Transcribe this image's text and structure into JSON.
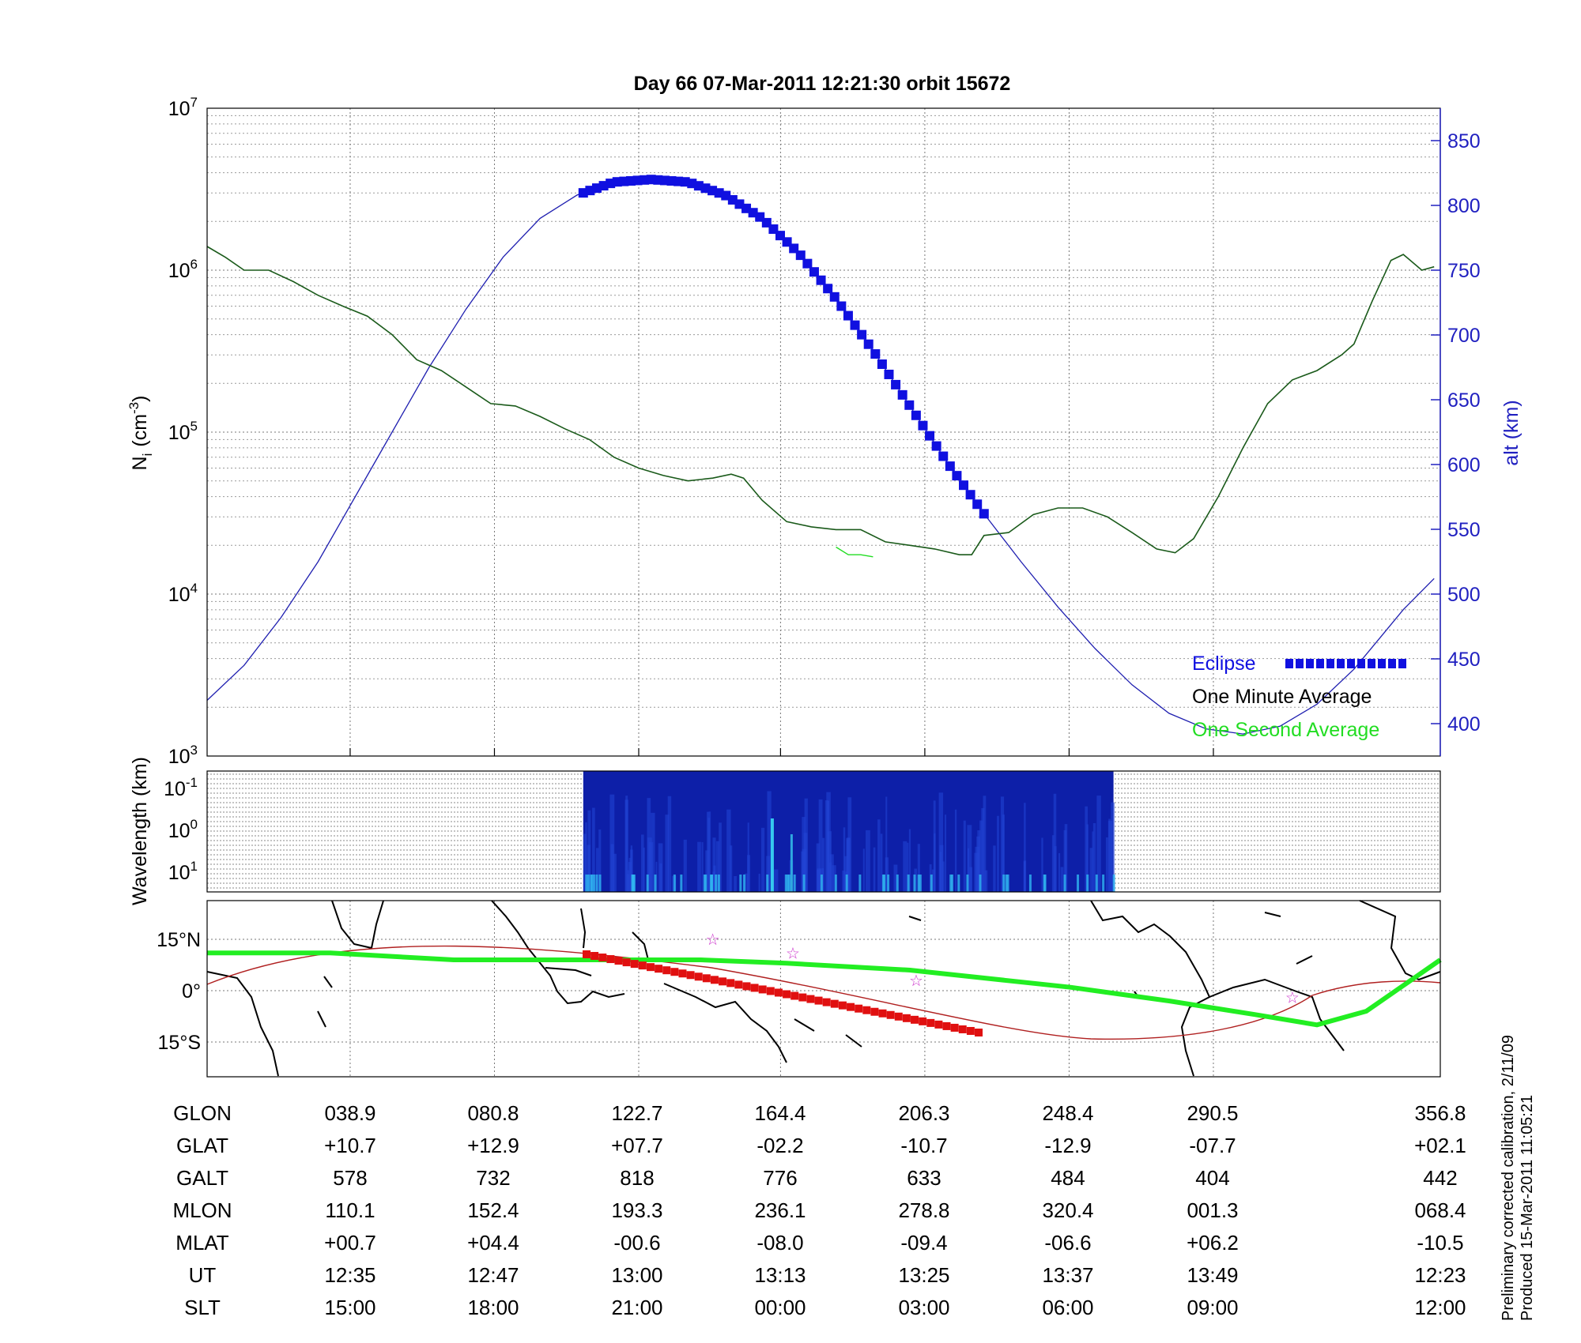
{
  "title": "Day 66  07-Mar-2011 12:21:30   orbit 15672",
  "side_note": {
    "line1": "Preliminary corrected calibration, 2/11/09",
    "line2": "Produced 15-Mar-2011 11:05:21"
  },
  "colors": {
    "altitude": "#1f1fb0",
    "eclipse": "#1010e0",
    "one_minute": "#1a5a1a",
    "one_second": "#22dd22",
    "track": "#22ee22",
    "track_thin": "#b02020",
    "eclipse_track": "#e01010",
    "stars": "#cc33cc",
    "right_axis": "#2020c0"
  },
  "chart_data": [
    {
      "type": "line",
      "panel": "density",
      "ylabel_main": "N",
      "ylabel_sub": "i",
      "ylabel_unit": "(cm",
      "ylabel_exp": "-3",
      "ylabel_close": ")",
      "y_scale": "log",
      "ylim": [
        1000,
        10000000
      ],
      "y_ticks": [
        {
          "value": 1000,
          "base": "10",
          "exp": "3"
        },
        {
          "value": 10000,
          "base": "10",
          "exp": "4"
        },
        {
          "value": 100000,
          "base": "10",
          "exp": "5"
        },
        {
          "value": 1000000,
          "base": "10",
          "exp": "6"
        },
        {
          "value": 10000000,
          "base": "10",
          "exp": "7"
        }
      ],
      "right_axis": {
        "label": "alt (km)",
        "ylim": [
          375,
          875
        ],
        "ticks": [
          "400",
          "450",
          "500",
          "550",
          "600",
          "650",
          "700",
          "750",
          "800",
          "850"
        ]
      },
      "grid": true,
      "x_range": [
        0,
        100
      ],
      "x_gridlines": [
        11.6,
        23.3,
        35,
        46.5,
        58.2,
        69.9,
        81.6
      ],
      "series": [
        {
          "name": "One Minute Average",
          "role": "density",
          "points": [
            [
              0,
              1400000
            ],
            [
              1.5,
              1200000
            ],
            [
              3,
              1000000
            ],
            [
              5,
              1000000
            ],
            [
              7,
              850000
            ],
            [
              9,
              700000
            ],
            [
              11,
              600000
            ],
            [
              13,
              520000
            ],
            [
              15,
              400000
            ],
            [
              17,
              280000
            ],
            [
              19,
              240000
            ],
            [
              21,
              190000
            ],
            [
              23,
              150000
            ],
            [
              25,
              145000
            ],
            [
              27,
              125000
            ],
            [
              29,
              105000
            ],
            [
              31,
              90000
            ],
            [
              33,
              70000
            ],
            [
              35,
              60000
            ],
            [
              37,
              54000
            ],
            [
              39,
              50000
            ],
            [
              41,
              52000
            ],
            [
              42.5,
              55000
            ],
            [
              43.5,
              52000
            ],
            [
              45,
              38000
            ],
            [
              47,
              28000
            ],
            [
              49,
              26000
            ],
            [
              51,
              25000
            ],
            [
              53,
              25000
            ],
            [
              55,
              21000
            ],
            [
              57,
              20000
            ],
            [
              59,
              19000
            ],
            [
              61,
              17500
            ],
            [
              62,
              17500
            ],
            [
              63,
              23000
            ],
            [
              65,
              24000
            ],
            [
              67,
              31000
            ],
            [
              69,
              34000
            ],
            [
              71,
              34000
            ],
            [
              73,
              30000
            ],
            [
              75,
              24000
            ],
            [
              77,
              19000
            ],
            [
              78.5,
              18000
            ],
            [
              80,
              22000
            ],
            [
              82,
              40000
            ],
            [
              84,
              80000
            ],
            [
              86,
              150000
            ],
            [
              88,
              210000
            ],
            [
              90,
              240000
            ],
            [
              92,
              300000
            ],
            [
              93,
              350000
            ],
            [
              94.5,
              650000
            ],
            [
              96,
              1150000
            ],
            [
              97,
              1250000
            ],
            [
              98.5,
              1000000
            ],
            [
              99.5,
              1050000
            ]
          ]
        },
        {
          "name": "One Second Average",
          "role": "density_fine",
          "points": [
            [
              51,
              19500
            ],
            [
              52,
              17500
            ],
            [
              53,
              17500
            ],
            [
              54,
              17000
            ]
          ]
        },
        {
          "name": "altitude",
          "role": "altitude_km",
          "points": [
            [
              0,
              418
            ],
            [
              3,
              445
            ],
            [
              6,
              482
            ],
            [
              9,
              525
            ],
            [
              12,
              575
            ],
            [
              15,
              625
            ],
            [
              18,
              675
            ],
            [
              21,
              720
            ],
            [
              24,
              760
            ],
            [
              27,
              790
            ],
            [
              30,
              808
            ],
            [
              33,
              818
            ],
            [
              36,
              820
            ],
            [
              39,
              818
            ],
            [
              42,
              808
            ],
            [
              45,
              790
            ],
            [
              48,
              763
            ],
            [
              51,
              728
            ],
            [
              54,
              688
            ],
            [
              57,
              645
            ],
            [
              60,
              602
            ],
            [
              63,
              562
            ],
            [
              66,
              525
            ],
            [
              69,
              490
            ],
            [
              72,
              458
            ],
            [
              75,
              430
            ],
            [
              78,
              408
            ],
            [
              81,
              396
            ],
            [
              84,
              392
            ],
            [
              87,
              398
            ],
            [
              90,
              415
            ],
            [
              93,
              442
            ],
            [
              95,
              465
            ],
            [
              97,
              488
            ],
            [
              99.5,
              512
            ]
          ]
        },
        {
          "name": "Eclipse",
          "role": "eclipse",
          "x_start": 30.5,
          "x_end": 63,
          "count": 60
        }
      ],
      "legend": [
        {
          "label": "Eclipse",
          "role": "eclipse"
        },
        {
          "label": "One Minute Average",
          "role": "one_minute"
        },
        {
          "label": "One Second Average",
          "role": "one_second"
        }
      ],
      "legend_position": "bottom-right"
    },
    {
      "type": "heatmap",
      "panel": "spectrogram",
      "ylabel": "Wavelength (km)",
      "y_ticks": [
        {
          "base": "10",
          "exp": "-1"
        },
        {
          "base": "10",
          "exp": "0"
        },
        {
          "base": "10",
          "exp": "1"
        }
      ],
      "data_extent_x": [
        30.5,
        73.5
      ]
    },
    {
      "type": "map",
      "panel": "ground_track",
      "y_ticks": [
        {
          "value": 15,
          "label": "15°N"
        },
        {
          "value": 0,
          "label": "0°"
        },
        {
          "value": -15,
          "label": "15°S"
        }
      ],
      "track_points": [
        [
          0,
          11
        ],
        [
          10,
          11
        ],
        [
          20,
          9
        ],
        [
          30,
          9
        ],
        [
          40,
          9
        ],
        [
          47,
          8
        ],
        [
          57,
          6
        ],
        [
          70,
          1
        ],
        [
          78,
          -3
        ],
        [
          85,
          -7
        ],
        [
          90,
          -10
        ],
        [
          94,
          -6
        ],
        [
          98,
          4
        ],
        [
          100,
          9
        ]
      ],
      "stars": [
        [
          41,
          15
        ],
        [
          47.5,
          11
        ],
        [
          57.5,
          3
        ],
        [
          88,
          -2
        ]
      ]
    }
  ],
  "table": {
    "rows": [
      {
        "label": "GLON",
        "values": [
          "038.9",
          "080.8",
          "122.7",
          "164.4",
          "206.3",
          "248.4",
          "290.5",
          "356.8"
        ]
      },
      {
        "label": "GLAT",
        "values": [
          "+10.7",
          "+12.9",
          "+07.7",
          "-02.2",
          "-10.7",
          "-12.9",
          "-07.7",
          "+02.1"
        ]
      },
      {
        "label": "GALT",
        "values": [
          "578",
          "732",
          "818",
          "776",
          "633",
          "484",
          "404",
          "442"
        ]
      },
      {
        "label": "MLON",
        "values": [
          "110.1",
          "152.4",
          "193.3",
          "236.1",
          "278.8",
          "320.4",
          "001.3",
          "068.4"
        ]
      },
      {
        "label": "MLAT",
        "values": [
          "+00.7",
          "+04.4",
          "-00.6",
          "-08.0",
          "-09.4",
          "-06.6",
          "+06.2",
          "-10.5"
        ]
      },
      {
        "label": "UT",
        "values": [
          "12:35",
          "12:47",
          "13:00",
          "13:13",
          "13:25",
          "13:37",
          "13:49",
          "12:23"
        ]
      },
      {
        "label": "SLT",
        "values": [
          "15:00",
          "18:00",
          "21:00",
          "00:00",
          "03:00",
          "06:00",
          "09:00",
          "12:00"
        ]
      }
    ]
  }
}
